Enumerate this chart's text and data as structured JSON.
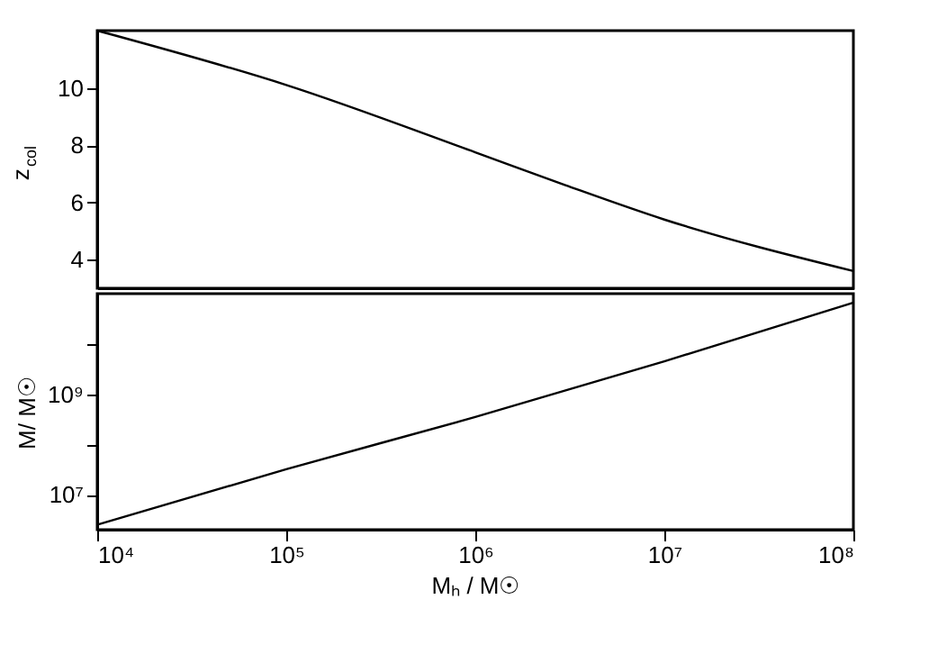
{
  "chart_data": [
    {
      "type": "line",
      "ylabel": "z$_{col}$",
      "x": [
        10000,
        100000,
        1000000,
        3000000,
        10000000,
        100000000
      ],
      "xlim": [
        10000,
        100000000
      ],
      "xticks": [
        {
          "value": 10000,
          "label": null
        },
        {
          "value": 100000,
          "label": null
        },
        {
          "value": 1000000,
          "label": null
        },
        {
          "value": 10000000,
          "label": null
        },
        {
          "value": 100000000,
          "label": null
        }
      ],
      "series": [
        {
          "color": "#000000",
          "values": [
            12.0,
            10.1,
            7.75,
            6.6,
            5.4,
            3.6
          ]
        }
      ],
      "ylim": [
        3,
        12
      ],
      "yticks": [
        4,
        6,
        8,
        10
      ],
      "log": "x",
      "tick_labels": "y",
      "grid": false
    },
    {
      "type": "line",
      "ylabel": "M/ M☉",
      "xlabel": "Mₕ / M☉",
      "x": [
        10000,
        100000,
        1000000,
        10000000,
        100000000
      ],
      "xlim": [
        10000,
        100000000
      ],
      "xticks": [
        {
          "value": 10000,
          "label": "10⁴"
        },
        {
          "value": 100000,
          "label": "10⁵"
        },
        {
          "value": 1000000,
          "label": "10⁶"
        },
        {
          "value": 10000000,
          "label": "10⁷"
        },
        {
          "value": 100000000,
          "label": "10⁸"
        }
      ],
      "series": [
        {
          "color": "#000000",
          "values": [
            2500000,
            32000000,
            350000000,
            4500000000,
            66000000000
          ]
        }
      ],
      "ylim": [
        2000000,
        100000000000
      ],
      "yticks": [
        {
          "value": 10000000,
          "label": "10⁷"
        },
        {
          "value": 100000000,
          "label": null
        },
        {
          "value": 1000000000,
          "label": "10⁹"
        },
        {
          "value": 10000000000,
          "label": null
        }
      ],
      "log": "xy",
      "grid": false
    }
  ]
}
